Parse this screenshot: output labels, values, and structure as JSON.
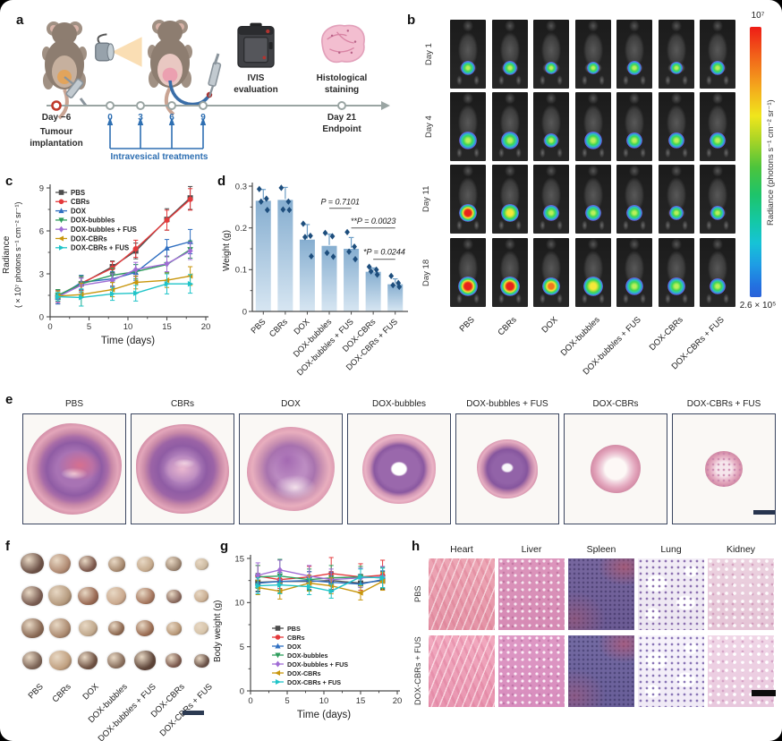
{
  "panel_letters": {
    "a": "a",
    "b": "b",
    "c": "c",
    "d": "d",
    "e": "e",
    "f": "f",
    "g": "g",
    "h": "h"
  },
  "groups": [
    "PBS",
    "CBRs",
    "DOX",
    "DOX-bubbles",
    "DOX-bubbles + FUS",
    "DOX-CBRs",
    "DOX-CBRs + FUS"
  ],
  "panel_a": {
    "ivis_line1": "IVIS",
    "ivis_line2": "evaluation",
    "hist_line1": "Histological",
    "hist_line2": "staining",
    "day_minus6": "Day −6",
    "tumour_line1": "Tumour",
    "tumour_line2": "implantation",
    "treatment_days": [
      "0",
      "3",
      "6",
      "9"
    ],
    "treatments_label": "Intravesical treatments",
    "day21": "Day 21",
    "endpoint": "Endpoint"
  },
  "panel_b": {
    "rows": [
      "Day 1",
      "Day 4",
      "Day 11",
      "Day 18"
    ],
    "colorbar": {
      "top": "10⁷",
      "bottom": "2.6 × 10⁵",
      "label": "Radiance (photons s⁻¹ cm⁻² sr⁻¹)"
    }
  },
  "chart_data": [
    {
      "panel": "c",
      "type": "line",
      "x": [
        1,
        4,
        8,
        11,
        15,
        18
      ],
      "xlim": [
        0,
        20
      ],
      "ylim": [
        0,
        9
      ],
      "xticks": [
        0,
        5,
        10,
        15,
        20
      ],
      "yticks": [
        0,
        3,
        6,
        9
      ],
      "xlabel": "Time (days)",
      "ylabel_line1": "Radiance",
      "ylabel_line2": "(×10⁷ photons s⁻¹ cm⁻² sr⁻¹)",
      "legend_position": "top-left",
      "grid": false,
      "series": [
        {
          "name": "PBS",
          "color": "#4d4d4d",
          "marker": "square",
          "values": [
            1.4,
            2.3,
            3.5,
            4.6,
            6.8,
            8.3
          ],
          "errors": [
            0.5,
            0.45,
            0.4,
            0.55,
            0.75,
            0.8
          ]
        },
        {
          "name": "CBRs",
          "color": "#e43a3c",
          "marker": "circle",
          "values": [
            1.45,
            2.35,
            3.4,
            4.75,
            6.75,
            8.2
          ],
          "errors": [
            0.4,
            0.5,
            0.45,
            0.6,
            0.7,
            0.75
          ]
        },
        {
          "name": "DOX",
          "color": "#2f6fc1",
          "marker": "triangle-up",
          "values": [
            1.35,
            2.4,
            2.65,
            3.1,
            4.8,
            5.25
          ],
          "errors": [
            0.45,
            0.5,
            0.5,
            0.55,
            0.6,
            0.85
          ]
        },
        {
          "name": "DOX-bubbles",
          "color": "#2e9d5c",
          "marker": "triangle-down",
          "values": [
            1.5,
            2.3,
            2.9,
            3.15,
            3.65,
            4.7
          ],
          "errors": [
            0.4,
            0.55,
            0.5,
            0.5,
            0.55,
            0.6
          ]
        },
        {
          "name": "DOX-bubbles + FUS",
          "color": "#a06cd5",
          "marker": "diamond",
          "values": [
            1.4,
            2.2,
            2.55,
            3.3,
            3.7,
            4.6
          ],
          "errors": [
            0.4,
            0.5,
            0.45,
            0.5,
            0.55,
            0.6
          ]
        },
        {
          "name": "DOX-CBRs",
          "color": "#c8960c",
          "marker": "triangle-left",
          "values": [
            1.45,
            1.55,
            1.9,
            2.4,
            2.55,
            2.85
          ],
          "errors": [
            0.35,
            0.8,
            0.5,
            0.45,
            0.5,
            0.65
          ]
        },
        {
          "name": "DOX-CBRs + FUS",
          "color": "#1fc4c8",
          "marker": "triangle-right",
          "values": [
            1.4,
            1.35,
            1.6,
            1.65,
            2.3,
            2.3
          ],
          "errors": [
            0.3,
            0.6,
            0.45,
            0.55,
            0.7,
            0.65
          ]
        }
      ]
    },
    {
      "panel": "d",
      "type": "bar",
      "categories": [
        "PBS",
        "CBRs",
        "DOX",
        "DOX-bubbles",
        "DOX-bubbles + FUS",
        "DOX-CBRs",
        "DOX-CBRs + FUS"
      ],
      "values": [
        0.265,
        0.267,
        0.172,
        0.157,
        0.15,
        0.095,
        0.065
      ],
      "errors": [
        0.027,
        0.03,
        0.036,
        0.028,
        0.027,
        0.009,
        0.013
      ],
      "points": [
        [
          0.293,
          0.27,
          0.263,
          0.243
        ],
        [
          0.296,
          0.263,
          0.244,
          0.243
        ],
        [
          0.21,
          0.181,
          0.178,
          0.132
        ],
        [
          0.188,
          0.18,
          0.14,
          0.131
        ],
        [
          0.19,
          0.155,
          0.143,
          0.125
        ],
        [
          0.107,
          0.1,
          0.096,
          0.088
        ],
        [
          0.085,
          0.068,
          0.063,
          0.059
        ]
      ],
      "ylabel": "Weight (g)",
      "ylim": [
        0,
        0.3
      ],
      "yticks": [
        0,
        0.1,
        0.2,
        0.3
      ],
      "bar_top_color": "#86aed0",
      "bar_bottom_color": "#d7e6f2",
      "point_color": "#1e4e7d",
      "error_color": "#6d9ec6",
      "annotations": [
        {
          "label": "P = 0.7101",
          "from": 3,
          "to": 4,
          "line_y": 0.247,
          "text_y": 0.263
        },
        {
          "label": "**P = 0.0023",
          "from": 4,
          "to": 6,
          "line_y": 0.2,
          "text_y": 0.216
        },
        {
          "label": "*P = 0.0244",
          "from": 5,
          "to": 6,
          "line_y": 0.125,
          "text_y": 0.142
        }
      ]
    },
    {
      "panel": "g",
      "type": "line",
      "x": [
        1,
        4,
        8,
        11,
        15,
        18
      ],
      "xlim": [
        0,
        20
      ],
      "ylim": [
        0,
        15
      ],
      "xticks": [
        0,
        5,
        10,
        15,
        20
      ],
      "yticks": [
        0,
        5,
        10,
        15
      ],
      "xlabel": "Time (days)",
      "ylabel": "Body weight (g)",
      "legend_position": "inside-lower-left",
      "grid": false,
      "series": [
        {
          "name": "PBS",
          "color": "#4d4d4d",
          "marker": "square",
          "values": [
            12.3,
            12.4,
            12.4,
            12.5,
            12.2,
            12.5
          ],
          "errors": [
            1.0,
            1.0,
            1.1,
            1.0,
            1.0,
            1.0
          ]
        },
        {
          "name": "CBRs",
          "color": "#e43a3c",
          "marker": "circle",
          "values": [
            13.0,
            12.6,
            12.9,
            13.3,
            12.9,
            13.1
          ],
          "errors": [
            1.2,
            1.0,
            1.2,
            1.8,
            1.5,
            1.7
          ]
        },
        {
          "name": "DOX",
          "color": "#2f6fc1",
          "marker": "triangle-up",
          "values": [
            12.2,
            12.4,
            12.5,
            12.3,
            12.1,
            12.6
          ],
          "errors": [
            1.0,
            1.0,
            1.0,
            1.1,
            1.0,
            1.0
          ]
        },
        {
          "name": "DOX-bubbles",
          "color": "#2e9d5c",
          "marker": "triangle-down",
          "values": [
            12.9,
            13.0,
            12.6,
            12.8,
            12.9,
            12.8
          ],
          "errors": [
            1.3,
            1.9,
            1.2,
            1.4,
            1.2,
            1.2
          ]
        },
        {
          "name": "DOX-bubbles + FUS",
          "color": "#a06cd5",
          "marker": "diamond",
          "values": [
            13.1,
            13.7,
            13.0,
            12.6,
            12.8,
            12.9
          ],
          "errors": [
            1.4,
            1.1,
            1.2,
            1.2,
            1.1,
            1.2
          ]
        },
        {
          "name": "DOX-CBRs",
          "color": "#c8960c",
          "marker": "triangle-left",
          "values": [
            11.7,
            11.3,
            12.2,
            11.9,
            11.1,
            12.4
          ],
          "errors": [
            0.8,
            0.9,
            0.9,
            0.9,
            0.8,
            1.0
          ]
        },
        {
          "name": "DOX-CBRs + FUS",
          "color": "#1fc4c8",
          "marker": "triangle-right",
          "values": [
            11.9,
            12.0,
            11.8,
            11.3,
            12.9,
            12.8
          ],
          "errors": [
            0.9,
            1.0,
            0.9,
            0.8,
            0.9,
            1.1
          ]
        }
      ]
    }
  ],
  "panel_e": {
    "labels": [
      "PBS",
      "CBRs",
      "DOX",
      "DOX-bubbles",
      "DOX-bubbles + FUS",
      "DOX-CBRs",
      "DOX-CBRs + FUS"
    ],
    "blob_sizes": [
      106,
      104,
      98,
      82,
      68,
      56,
      42
    ]
  },
  "panel_f": {
    "labels": [
      "PBS",
      "CBRs",
      "DOX",
      "DOX-bubbles",
      "DOX-bubbles + FUS",
      "DOX-CBRs",
      "DOX-CBRs + FUS"
    ]
  },
  "panel_h": {
    "organs": [
      "Heart",
      "Liver",
      "Spleen",
      "Lung",
      "Kidney"
    ],
    "rows": [
      "PBS",
      "DOX-CBRs + FUS"
    ]
  }
}
